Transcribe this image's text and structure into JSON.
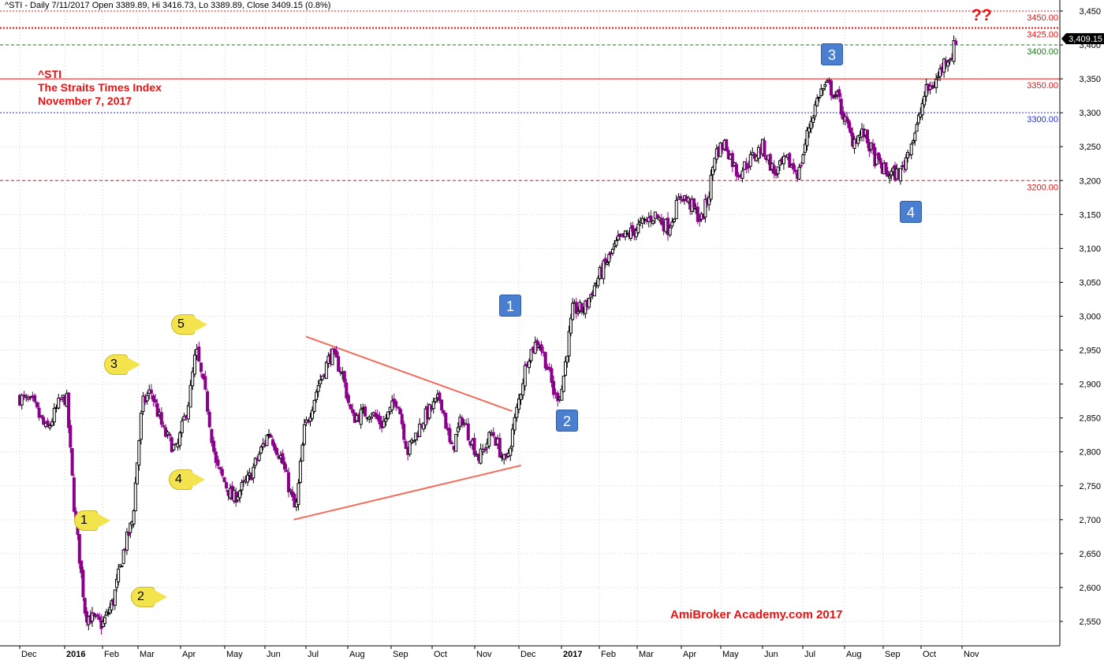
{
  "header": {
    "text": "^STI - Daily 7/11/2017 Open 3389.89, Hi 3416.73, Lo 3389.89, Close 3409.15 (0.8%)"
  },
  "title": {
    "line1": "^STI",
    "line2": "The Straits Times Index",
    "line3": "November 7, 2017"
  },
  "annotation_question": "??",
  "watermark": "AmiBroker Academy.com  2017",
  "colors": {
    "up": "#000000",
    "down": "#8b008b",
    "trendline": "#f26d5b",
    "grid": "#c8c8c8",
    "wave_blue": "#4a7fd0",
    "wave_yellow": "#f3e44d",
    "text_red": "#ee1111"
  },
  "wave_labels_blue": [
    "1",
    "2",
    "3",
    "4"
  ],
  "wave_labels_yellow": [
    "1",
    "2",
    "3",
    "4",
    "5"
  ],
  "chart_data": {
    "type": "candlestick",
    "symbol": "^STI",
    "title": "The Straits Times Index",
    "ylim": [
      2510,
      3460
    ],
    "y_ticks": [
      2550,
      2600,
      2650,
      2700,
      2750,
      2800,
      2850,
      2900,
      2950,
      3000,
      3050,
      3100,
      3150,
      3200,
      3250,
      3300,
      3350,
      3400,
      3450
    ],
    "x_ticks": [
      "Dec",
      "2016",
      "Feb",
      "Mar",
      "Apr",
      "May",
      "Jun",
      "Jul",
      "Aug",
      "Sep",
      "Oct",
      "Nov",
      "Dec",
      "2017",
      "Feb",
      "Mar",
      "Apr",
      "May",
      "Jun",
      "Jul",
      "Aug",
      "Sep",
      "Oct",
      "Nov"
    ],
    "last_close": "3,409.15",
    "price_keypoints": [
      {
        "t": 0,
        "v": 2880
      },
      {
        "t": 0.3,
        "v": 2870
      },
      {
        "t": 0.6,
        "v": 2830
      },
      {
        "t": 0.9,
        "v": 2875
      },
      {
        "t": 1.05,
        "v": 2880
      },
      {
        "t": 1.25,
        "v": 2720
      },
      {
        "t": 1.55,
        "v": 2560
      },
      {
        "t": 2.0,
        "v": 2545
      },
      {
        "t": 2.3,
        "v": 2580
      },
      {
        "t": 2.6,
        "v": 2655
      },
      {
        "t": 2.85,
        "v": 2700
      },
      {
        "t": 3.1,
        "v": 2870
      },
      {
        "t": 3.3,
        "v": 2890
      },
      {
        "t": 3.6,
        "v": 2830
      },
      {
        "t": 3.9,
        "v": 2800
      },
      {
        "t": 4.2,
        "v": 2880
      },
      {
        "t": 4.35,
        "v": 2950
      },
      {
        "t": 4.6,
        "v": 2870
      },
      {
        "t": 4.8,
        "v": 2780
      },
      {
        "t": 5.2,
        "v": 2730
      },
      {
        "t": 5.6,
        "v": 2760
      },
      {
        "t": 6.1,
        "v": 2830
      },
      {
        "t": 6.4,
        "v": 2790
      },
      {
        "t": 6.75,
        "v": 2710
      },
      {
        "t": 6.95,
        "v": 2830
      },
      {
        "t": 7.3,
        "v": 2900
      },
      {
        "t": 7.6,
        "v": 2945
      },
      {
        "t": 7.85,
        "v": 2920
      },
      {
        "t": 8.1,
        "v": 2850
      },
      {
        "t": 8.5,
        "v": 2860
      },
      {
        "t": 8.8,
        "v": 2840
      },
      {
        "t": 9.15,
        "v": 2880
      },
      {
        "t": 9.4,
        "v": 2800
      },
      {
        "t": 9.8,
        "v": 2850
      },
      {
        "t": 10.2,
        "v": 2880
      },
      {
        "t": 10.45,
        "v": 2800
      },
      {
        "t": 10.7,
        "v": 2850
      },
      {
        "t": 11.1,
        "v": 2790
      },
      {
        "t": 11.4,
        "v": 2830
      },
      {
        "t": 11.7,
        "v": 2780
      },
      {
        "t": 11.95,
        "v": 2860
      },
      {
        "t": 12.2,
        "v": 2940
      },
      {
        "t": 12.45,
        "v": 2965
      },
      {
        "t": 12.65,
        "v": 2930
      },
      {
        "t": 12.85,
        "v": 2880
      },
      {
        "t": 13.0,
        "v": 2890
      },
      {
        "t": 13.3,
        "v": 3010
      },
      {
        "t": 13.6,
        "v": 3010
      },
      {
        "t": 14.0,
        "v": 3060
      },
      {
        "t": 14.5,
        "v": 3110
      },
      {
        "t": 15.0,
        "v": 3130
      },
      {
        "t": 15.4,
        "v": 3150
      },
      {
        "t": 15.7,
        "v": 3130
      },
      {
        "t": 16.0,
        "v": 3180
      },
      {
        "t": 16.3,
        "v": 3160
      },
      {
        "t": 16.5,
        "v": 3140
      },
      {
        "t": 16.7,
        "v": 3180
      },
      {
        "t": 16.85,
        "v": 3240
      },
      {
        "t": 17.1,
        "v": 3255
      },
      {
        "t": 17.4,
        "v": 3210
      },
      {
        "t": 17.7,
        "v": 3230
      },
      {
        "t": 18.0,
        "v": 3250
      },
      {
        "t": 18.3,
        "v": 3210
      },
      {
        "t": 18.6,
        "v": 3230
      },
      {
        "t": 18.9,
        "v": 3210
      },
      {
        "t": 19.15,
        "v": 3280
      },
      {
        "t": 19.4,
        "v": 3330
      },
      {
        "t": 19.6,
        "v": 3340
      },
      {
        "t": 19.85,
        "v": 3320
      },
      {
        "t": 20.0,
        "v": 3290
      },
      {
        "t": 20.2,
        "v": 3260
      },
      {
        "t": 20.5,
        "v": 3270
      },
      {
        "t": 20.8,
        "v": 3230
      },
      {
        "t": 21.1,
        "v": 3210
      },
      {
        "t": 21.45,
        "v": 3210
      },
      {
        "t": 21.7,
        "v": 3250
      },
      {
        "t": 21.9,
        "v": 3280
      },
      {
        "t": 22.1,
        "v": 3330
      },
      {
        "t": 22.35,
        "v": 3345
      },
      {
        "t": 22.6,
        "v": 3380
      },
      {
        "t": 22.75,
        "v": 3385
      },
      {
        "t": 22.85,
        "v": 3409.15
      }
    ],
    "horizontal_levels": [
      {
        "label": "3450.00",
        "value": 3450,
        "color": "#ee1111",
        "style": "dotted"
      },
      {
        "label": "3425.00",
        "value": 3425,
        "color": "#ee1111",
        "style": "dotted-bold"
      },
      {
        "label": "3400.00",
        "value": 3400,
        "color": "#1a7a1a",
        "style": "dashed"
      },
      {
        "label": "3350.00",
        "value": 3350,
        "color": "#ee1111",
        "style": "solid"
      },
      {
        "label": "3300.00",
        "value": 3300,
        "color": "#2233dd",
        "style": "dotted"
      },
      {
        "label": "3200.00",
        "value": 3200,
        "color": "#ee1111",
        "style": "dashed"
      }
    ],
    "trendlines": [
      {
        "from": {
          "t": 7.0,
          "v": 2970
        },
        "to": {
          "t": 11.85,
          "v": 2860
        }
      },
      {
        "from": {
          "t": 6.7,
          "v": 2700
        },
        "to": {
          "t": 12.05,
          "v": 2780
        }
      }
    ]
  }
}
